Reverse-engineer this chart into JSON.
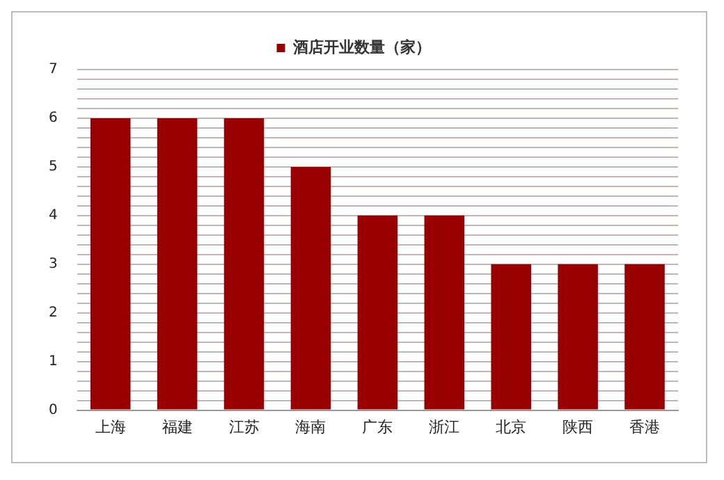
{
  "chart_data": {
    "type": "bar",
    "categories": [
      "上海",
      "福建",
      "江苏",
      "海南",
      "广东",
      "浙江",
      "北京",
      "陕西",
      "香港"
    ],
    "series": [
      {
        "name": "酒店开业数量（家）",
        "color": "#990000",
        "values": [
          6,
          6,
          6,
          5,
          4,
          4,
          3,
          3,
          3
        ]
      }
    ],
    "ylim": [
      0,
      7
    ],
    "yticks": [
      0,
      {
        "value": 0.2,
        "label": null
      },
      {
        "value": 0.4,
        "label": null
      },
      {
        "value": 0.6,
        "label": null
      },
      {
        "value": 0.8,
        "label": null
      },
      1,
      {
        "value": 1.2,
        "label": null
      },
      {
        "value": 1.4,
        "label": null
      },
      {
        "value": 1.6,
        "label": null
      },
      {
        "value": 1.8,
        "label": null
      },
      2,
      {
        "value": 2.2,
        "label": null
      },
      {
        "value": 2.4,
        "label": null
      },
      {
        "value": 2.6,
        "label": null
      },
      {
        "value": 2.8,
        "label": null
      },
      3,
      {
        "value": 3.2,
        "label": null
      },
      {
        "value": 3.4,
        "label": null
      },
      {
        "value": 3.6,
        "label": null
      },
      {
        "value": 3.8,
        "label": null
      },
      4,
      {
        "value": 4.2,
        "label": null
      },
      {
        "value": 4.4,
        "label": null
      },
      {
        "value": 4.6,
        "label": null
      },
      {
        "value": 4.8,
        "label": null
      },
      5,
      {
        "value": 5.2,
        "label": null
      },
      {
        "value": 5.4,
        "label": null
      },
      {
        "value": 5.6,
        "label": null
      },
      {
        "value": 5.8,
        "label": null
      },
      6,
      {
        "value": 6.2,
        "label": null
      },
      {
        "value": 6.4,
        "label": null
      },
      {
        "value": 6.6,
        "label": null
      },
      {
        "value": 6.8,
        "label": null
      },
      7
    ],
    "grid": "y",
    "legend": "top"
  }
}
